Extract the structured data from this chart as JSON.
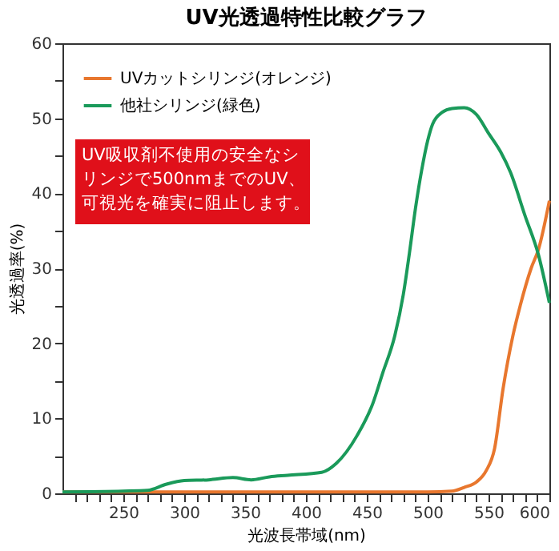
{
  "chart_data": {
    "type": "line",
    "title": "UV光透過特性比較グラフ",
    "xlabel": "光波長帯域(nm)",
    "ylabel": "光透過率(%)",
    "annotations": [
      "UV吸収剤不使用の安全なシリンジで500nmまでのUV、可視光を確実に阻止します。"
    ],
    "series": [
      {
        "name": "UVカットシリンジ(オレンジ)",
        "color": "#e8772e",
        "x": [
          200,
          300,
          400,
          500,
          520,
          530,
          540,
          548,
          555,
          562,
          570,
          576,
          585,
          591,
          600
        ],
        "values": [
          0.2,
          0.2,
          0.2,
          0.2,
          0.3,
          0.8,
          1.5,
          3,
          6,
          14,
          21,
          25,
          30,
          32.5,
          39
        ]
      },
      {
        "name": "他社シリンジ(緑色)",
        "color": "#1a9a5a",
        "x": [
          200,
          250,
          270,
          285,
          300,
          320,
          340,
          355,
          370,
          385,
          413,
          425,
          442,
          455,
          463,
          473,
          480,
          485,
          490,
          495,
          500,
          504,
          512,
          520,
          530,
          540,
          550,
          560,
          568,
          580,
          591,
          600
        ],
        "values": [
          0.2,
          0.3,
          0.4,
          1.2,
          1.7,
          1.8,
          2.1,
          1.8,
          2.2,
          2.4,
          2.8,
          4,
          7.7,
          12,
          16,
          21,
          26.5,
          32,
          38,
          43,
          47,
          49.2,
          50.8,
          51.3,
          51.4,
          50.5,
          48,
          45.5,
          42.8,
          37,
          31.8,
          25.4
        ]
      }
    ],
    "xlim": [
      200,
      600
    ],
    "xticks": [
      {
        "value": 210,
        "label": null
      },
      {
        "value": 220,
        "label": null
      },
      {
        "value": 230,
        "label": null
      },
      {
        "value": 240,
        "label": null
      },
      250,
      {
        "value": 260,
        "label": null
      },
      {
        "value": 270,
        "label": null
      },
      {
        "value": 280,
        "label": null
      },
      {
        "value": 290,
        "label": null
      },
      300,
      {
        "value": 310,
        "label": null
      },
      {
        "value": 320,
        "label": null
      },
      {
        "value": 330,
        "label": null
      },
      {
        "value": 340,
        "label": null
      },
      350,
      {
        "value": 360,
        "label": null
      },
      {
        "value": 370,
        "label": null
      },
      {
        "value": 380,
        "label": null
      },
      {
        "value": 390,
        "label": null
      },
      400,
      {
        "value": 410,
        "label": null
      },
      {
        "value": 420,
        "label": null
      },
      {
        "value": 430,
        "label": null
      },
      {
        "value": 440,
        "label": null
      },
      450,
      {
        "value": 460,
        "label": null
      },
      {
        "value": 470,
        "label": null
      },
      {
        "value": 480,
        "label": null
      },
      {
        "value": 490,
        "label": null
      },
      500,
      {
        "value": 510,
        "label": null
      },
      {
        "value": 520,
        "label": null
      },
      {
        "value": 530,
        "label": null
      },
      {
        "value": 540,
        "label": null
      },
      550,
      {
        "value": 560,
        "label": null
      },
      {
        "value": 570,
        "label": null
      },
      {
        "value": 580,
        "label": null
      },
      {
        "value": 590,
        "label": null
      },
      600
    ],
    "ylim": [
      0,
      60
    ],
    "yticks": [
      0,
      {
        "value": 5,
        "label": null
      },
      10,
      {
        "value": 15,
        "label": null
      },
      20,
      {
        "value": 25,
        "label": null
      },
      30,
      {
        "value": 35,
        "label": null
      },
      40,
      {
        "value": 45,
        "label": null
      },
      50,
      {
        "value": 55,
        "label": null
      },
      60
    ],
    "legend": "top left",
    "grid": false,
    "marker": "none",
    "line_style": "solid"
  }
}
